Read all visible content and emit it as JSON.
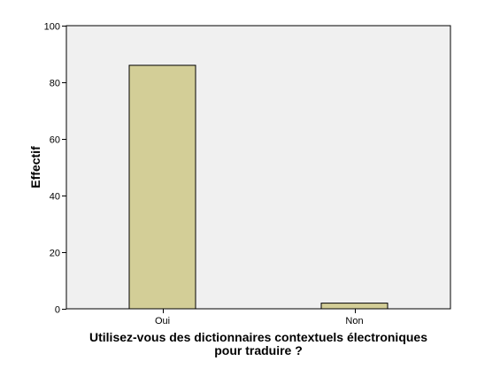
{
  "chart_data": {
    "type": "bar",
    "categories": [
      "Oui",
      "Non"
    ],
    "values": [
      86,
      2
    ],
    "xlabel_lines": [
      "Utilisez-vous des dictionnaires contextuels électroniques",
      "pour traduire ?"
    ],
    "ylabel": "Effectif",
    "ylim": [
      0,
      100
    ],
    "yticks": [
      "0",
      "20",
      "40",
      "60",
      "80",
      "100"
    ],
    "grid": false,
    "legend": "none",
    "colors": {
      "plot_background": "#f0f0f0",
      "bar_fill": "#d3ce97",
      "bar_stroke": "#000000",
      "axis": "#000000"
    }
  }
}
